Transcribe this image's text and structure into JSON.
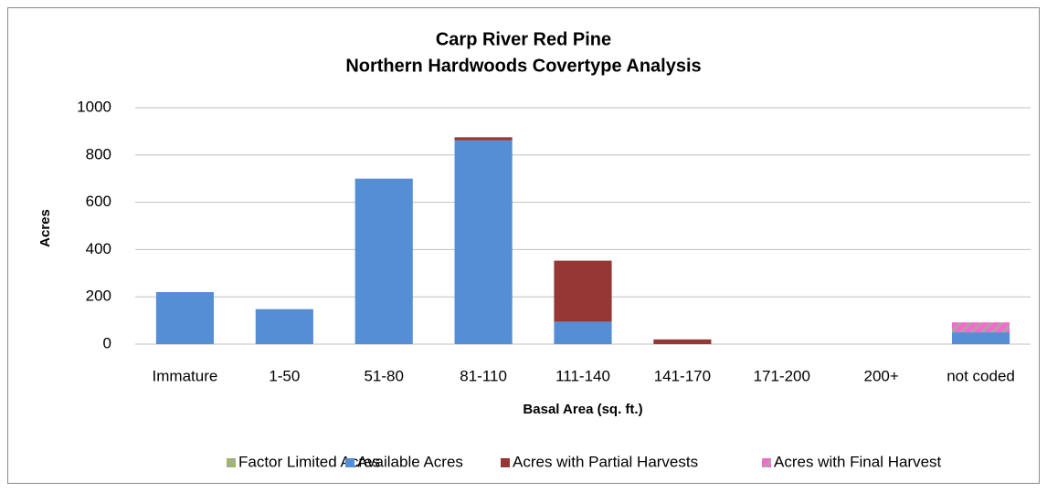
{
  "chart_data": {
    "type": "bar",
    "stacked": true,
    "title": [
      "Carp River Red Pine",
      "Northern Hardwoods Covertype Analysis"
    ],
    "x_label": "Basal Area (sq. ft.)",
    "y_label": "Acres",
    "categories": [
      "Immature",
      "1-50",
      "51-80",
      "81-110",
      "111-140",
      "141-170",
      "171-200",
      "200+",
      "not coded"
    ],
    "series": [
      {
        "name": "Factor Limited Acres",
        "color": "#9bbb59",
        "hatch": true,
        "values": [
          0,
          0,
          0,
          0,
          0,
          0,
          0,
          0,
          0
        ]
      },
      {
        "name": "Available Acres",
        "color": "#558ed5",
        "values": [
          220,
          148,
          700,
          862,
          95,
          0,
          0,
          0,
          50
        ]
      },
      {
        "name": "Acres with Partial Harvests",
        "color": "#953735",
        "values": [
          0,
          0,
          0,
          13,
          258,
          20,
          0,
          0,
          0
        ]
      },
      {
        "name": "Acres with Final Harvest",
        "color": "#ff66cc",
        "hatch": true,
        "values": [
          0,
          0,
          0,
          0,
          0,
          0,
          0,
          0,
          42
        ]
      }
    ],
    "ylim": [
      0,
      1000
    ],
    "yticks": [
      0,
      200,
      400,
      600,
      800,
      1000
    ],
    "grid": true,
    "legend": "bottom"
  }
}
